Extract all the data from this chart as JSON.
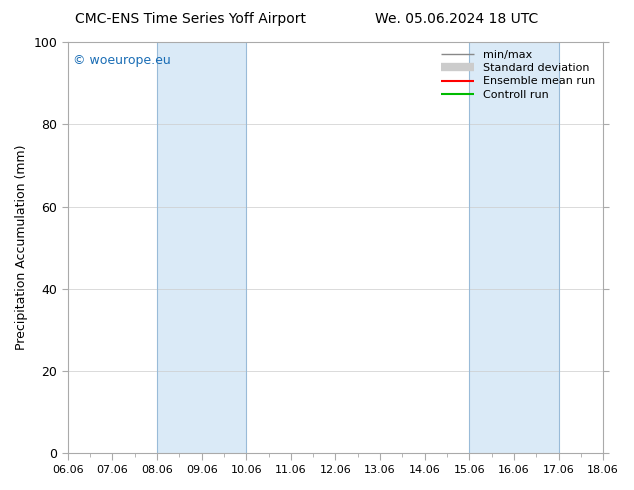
{
  "title": "CMC-ENS Time Series Yoff Airport",
  "title2": "We. 05.06.2024 18 UTC",
  "ylabel": "Precipitation Accumulation (mm)",
  "ylim": [
    0,
    100
  ],
  "yticks": [
    0,
    20,
    40,
    60,
    80,
    100
  ],
  "xtick_labels": [
    "06.06",
    "07.06",
    "08.06",
    "09.06",
    "10.06",
    "11.06",
    "12.06",
    "13.06",
    "14.06",
    "15.06",
    "16.06",
    "17.06",
    "18.06"
  ],
  "watermark": "© woeurope.eu",
  "shaded_bands": [
    {
      "x_start": 2.0,
      "x_end": 4.0
    },
    {
      "x_start": 9.0,
      "x_end": 11.0
    }
  ],
  "shade_color": "#daeaf7",
  "shade_edge_color": "#99bbd8",
  "legend_items": [
    {
      "label": "min/max",
      "color": "#888888",
      "lw": 1.0,
      "type": "line"
    },
    {
      "label": "Standard deviation",
      "color": "#cccccc",
      "lw": 6.0,
      "type": "line"
    },
    {
      "label": "Ensemble mean run",
      "color": "#ff0000",
      "lw": 1.5,
      "type": "line"
    },
    {
      "label": "Controll run",
      "color": "#00bb00",
      "lw": 1.5,
      "type": "line"
    }
  ],
  "background_color": "#ffffff",
  "plot_bg_color": "#ffffff",
  "title_fontsize": 10,
  "watermark_color": "#1a6db5",
  "watermark_fontsize": 9,
  "xlim": [
    0,
    12
  ]
}
